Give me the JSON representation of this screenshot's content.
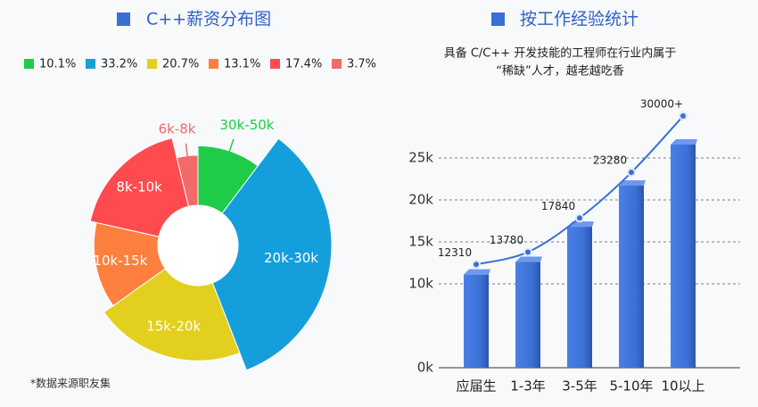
{
  "footnote": "*数据来源职友集",
  "chart_data": [
    {
      "type": "pie",
      "rose": true,
      "title": "C++薪资分布图",
      "categories": [
        "30k-50k",
        "20k-30k",
        "15k-20k",
        "10k-15k",
        "8k-10k",
        "6k-8k"
      ],
      "values": [
        10.1,
        33.2,
        20.7,
        13.1,
        17.4,
        3.7
      ],
      "value_labels": [
        "10.1%",
        "33.2%",
        "20.7%",
        "13.1%",
        "17.4%",
        "3.7%"
      ],
      "colors": [
        "#1fcc4a",
        "#149fdc",
        "#e3cf1d",
        "#ff7f3f",
        "#ff4b4f",
        "#f26a6a"
      ]
    },
    {
      "type": "bar",
      "title": "按工作经验统计",
      "subtitle": [
        "具备 C/C++ 开发技能的工程师在行业内属于",
        "“稀缺”人才，越老越吃香"
      ],
      "categories": [
        "应届生",
        "1-3年",
        "3-5年",
        "5-10年",
        "10以上"
      ],
      "series": [
        {
          "type": "bar",
          "color": "#3a6fd4",
          "values": [
            11100,
            12600,
            16800,
            21700,
            26600
          ]
        },
        {
          "type": "line",
          "color": "#3a6fd4",
          "values": [
            12310,
            13780,
            17840,
            23280,
            30000
          ],
          "value_labels": [
            "12310",
            "13780",
            "17840",
            "23280",
            "30000+"
          ]
        }
      ],
      "ylim": [
        0,
        30000
      ],
      "yticks": [
        {
          "value": 0,
          "label": "0k"
        },
        {
          "value": 10000,
          "label": "10k"
        },
        {
          "value": 15000,
          "label": "15k"
        },
        {
          "value": 20000,
          "label": "20k"
        },
        {
          "value": 25000,
          "label": "25k"
        }
      ],
      "grid": true
    }
  ]
}
